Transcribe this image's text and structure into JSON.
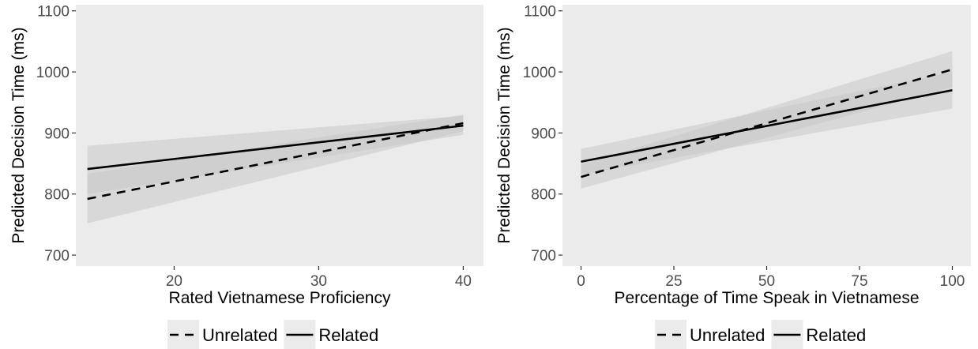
{
  "colors": {
    "panel_background": "#ebebeb",
    "ribbon": "#c9c9c9",
    "line": "#000000",
    "tick_text": "#4d4d4d"
  },
  "chart_data": [
    {
      "type": "line",
      "xlabel": "Rated Vietnamese Proficiency",
      "ylabel": "Predicted Decision Time (ms)",
      "xlim": [
        13.2,
        41.4
      ],
      "ylim": [
        682,
        1110
      ],
      "xticks": [
        20,
        30,
        40
      ],
      "yticks": [
        700,
        800,
        900,
        1000,
        1100
      ],
      "grid": false,
      "legend": "bottom",
      "series": [
        {
          "name": "Unrelated",
          "linestyle": "dashed",
          "x": [
            14,
            40
          ],
          "y": [
            792,
            916
          ],
          "ci_lower": [
            752,
            903
          ],
          "ci_upper": [
            833,
            930
          ]
        },
        {
          "name": "Related",
          "linestyle": "solid",
          "x": [
            14,
            40
          ],
          "y": [
            841,
            912
          ],
          "ci_lower": [
            800,
            897
          ],
          "ci_upper": [
            879,
            928
          ]
        }
      ]
    },
    {
      "type": "line",
      "xlabel": "Percentage of Time Speak in Vietnamese",
      "ylabel": "Predicted Decision Time (ms)",
      "xlim": [
        -5,
        105
      ],
      "ylim": [
        682,
        1110
      ],
      "xticks": [
        0,
        25,
        50,
        75,
        100
      ],
      "yticks": [
        700,
        800,
        900,
        1000,
        1100
      ],
      "grid": false,
      "legend": "bottom",
      "series": [
        {
          "name": "Unrelated",
          "linestyle": "dashed",
          "x": [
            0,
            100
          ],
          "y": [
            828,
            1004
          ],
          "ci_lower": [
            809,
            975
          ],
          "ci_upper": [
            848,
            1034
          ]
        },
        {
          "name": "Related",
          "linestyle": "solid",
          "x": [
            0,
            100
          ],
          "y": [
            853,
            970
          ],
          "ci_lower": [
            832,
            940
          ],
          "ci_upper": [
            874,
            1000
          ]
        }
      ]
    }
  ]
}
